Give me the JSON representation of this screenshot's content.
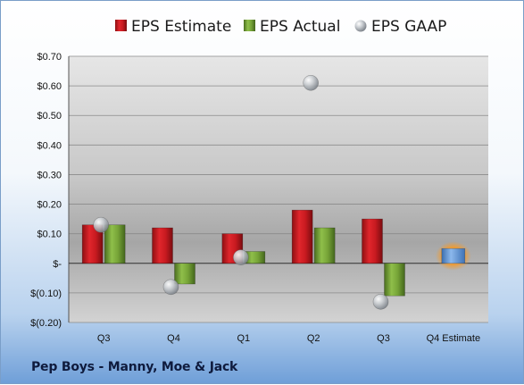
{
  "company": "Pep Boys - Manny, Moe & Jack",
  "colors": {
    "estimate": "#c0181f",
    "actual": "#6f9a33",
    "gaap": "#a9aeb3",
    "q4_estimate_bar": "#5b93d6",
    "q4_estimate_glow": "#f39a2b"
  },
  "chart_data": {
    "type": "bar",
    "categories": [
      "Q3",
      "Q4",
      "Q1",
      "Q2",
      "Q3",
      "Q4 Estimate"
    ],
    "series": [
      {
        "name": "EPS Estimate",
        "kind": "bar",
        "values": [
          0.13,
          0.12,
          0.1,
          0.18,
          0.15,
          null
        ]
      },
      {
        "name": "EPS Actual",
        "kind": "bar",
        "values": [
          0.13,
          -0.07,
          0.04,
          0.12,
          -0.11,
          null
        ]
      },
      {
        "name": "EPS GAAP",
        "kind": "scatter",
        "values": [
          0.13,
          -0.08,
          0.02,
          0.61,
          -0.13,
          null
        ]
      }
    ],
    "q4_estimate_value": 0.05,
    "ylim": [
      -0.2,
      0.7
    ],
    "yticks": [
      0.7,
      0.6,
      0.5,
      0.4,
      0.3,
      0.2,
      0.1,
      0.0,
      -0.1,
      -0.2
    ],
    "ytick_labels": [
      "$0.70",
      "$0.60",
      "$0.50",
      "$0.40",
      "$0.30",
      "$0.20",
      "$0.10",
      "$-",
      "$(0.10)",
      "$(0.20)"
    ],
    "legend_position": "top",
    "grid": true
  }
}
